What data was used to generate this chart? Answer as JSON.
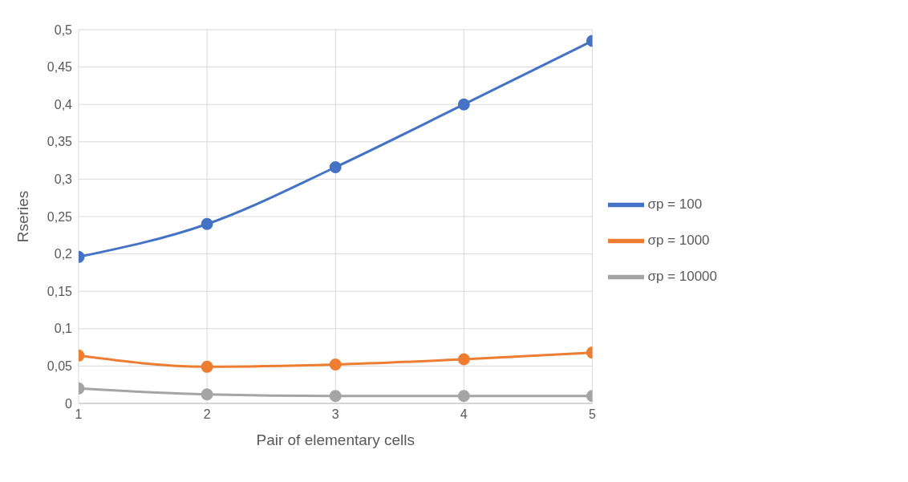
{
  "chart_data": {
    "type": "line",
    "xlabel": "Pair of elementary cells",
    "ylabel": "Rseries",
    "x": [
      1,
      2,
      3,
      4,
      5
    ],
    "xlim": [
      1,
      5
    ],
    "xticks": [
      1,
      2,
      3,
      4,
      5
    ],
    "ylim": [
      0,
      0.5
    ],
    "yticks": [
      0,
      {
        "value": 0.05,
        "label": "0,05"
      },
      {
        "value": 0.1,
        "label": "0,1"
      },
      {
        "value": 0.15,
        "label": "0,15"
      },
      {
        "value": 0.2,
        "label": "0,2"
      },
      {
        "value": 0.25,
        "label": "0,25"
      },
      {
        "value": 0.3,
        "label": "0,3"
      },
      {
        "value": 0.35,
        "label": "0,35"
      },
      {
        "value": 0.4,
        "label": "0,4"
      },
      {
        "value": 0.45,
        "label": "0,45"
      },
      {
        "value": 0.5,
        "label": "0,5"
      }
    ],
    "series": [
      {
        "name": "σp = 100",
        "color": "#4472c4",
        "values": [
          0.196,
          0.24,
          0.316,
          0.4,
          0.485
        ]
      },
      {
        "name": "σp = 1000",
        "color": "#ed7d31",
        "values": [
          0.064,
          0.049,
          0.052,
          0.059,
          0.068
        ]
      },
      {
        "name": "σp = 10000",
        "color": "#a5a5a5",
        "values": [
          0.02,
          0.012,
          0.01,
          0.01,
          0.01
        ]
      }
    ],
    "grid": true,
    "legend": "right",
    "marker": "circle",
    "line_style": "solid"
  }
}
